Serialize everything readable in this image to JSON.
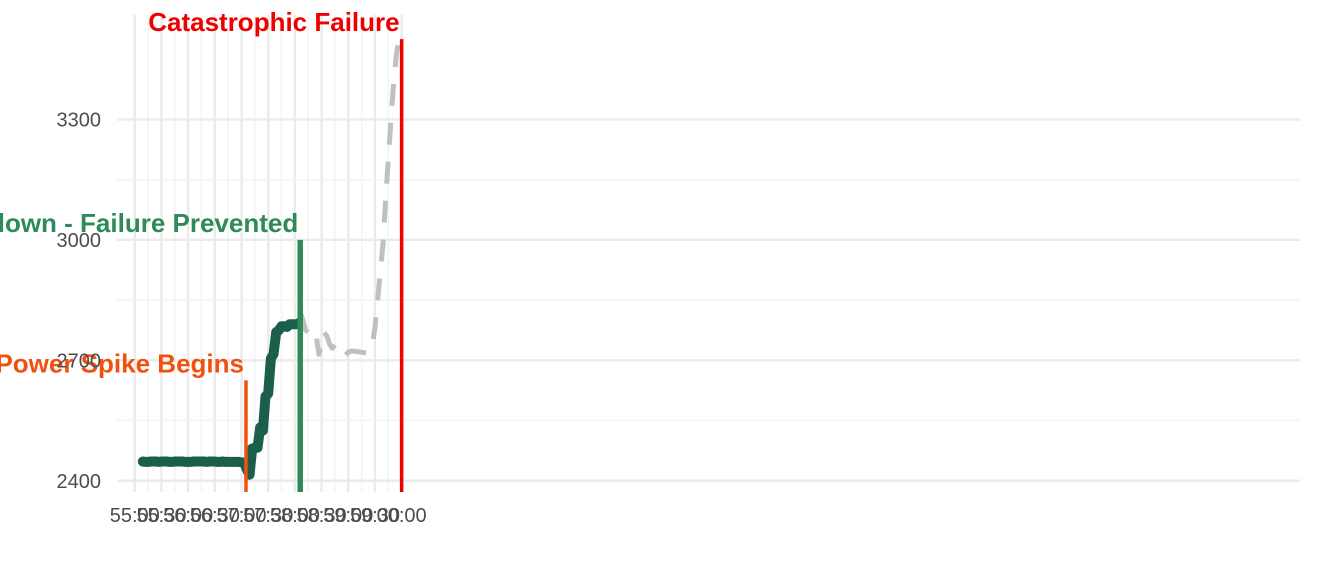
{
  "chart_data": {
    "type": "line",
    "title": "",
    "xlabel": "",
    "ylabel": "",
    "x_axis": {
      "unit": "seconds",
      "range": [
        -20,
        1310
      ],
      "ticks": [
        {
          "value": 0,
          "label": "55:00"
        },
        {
          "value": 30,
          "label": "55:30"
        },
        {
          "value": 60,
          "label": "56:00"
        },
        {
          "value": 90,
          "label": "56:30"
        },
        {
          "value": 120,
          "label": "57:00"
        },
        {
          "value": 150,
          "label": "57:30"
        },
        {
          "value": 180,
          "label": "58:00"
        },
        {
          "value": 210,
          "label": "58:30"
        },
        {
          "value": 240,
          "label": "59:00"
        },
        {
          "value": 270,
          "label": "59:30"
        },
        {
          "value": 300,
          "label": "00:00"
        }
      ]
    },
    "y_axis": {
      "range": [
        2372,
        3560
      ],
      "ticks": [
        2400,
        2700,
        3000,
        3300
      ]
    },
    "grid": true,
    "series": [
      {
        "role": "observed",
        "color": "#1b5e4b",
        "style": "solid",
        "x": [
          9,
          12,
          15,
          18,
          21,
          24,
          27,
          30,
          33,
          36,
          39,
          42,
          45,
          48,
          51,
          54,
          57,
          60,
          63,
          66,
          69,
          72,
          75,
          78,
          81,
          84,
          87,
          90,
          93,
          96,
          99,
          102,
          105,
          108,
          111,
          114,
          117,
          120,
          123,
          126,
          129,
          132,
          135,
          138,
          141,
          144,
          147,
          150,
          153,
          156,
          159,
          162,
          165,
          168,
          171,
          174,
          177,
          180,
          183,
          186
        ],
        "y": [
          2448,
          2447,
          2447,
          2448,
          2448,
          2448,
          2447,
          2448,
          2448,
          2448,
          2447,
          2447,
          2448,
          2448,
          2448,
          2448,
          2447,
          2447,
          2447,
          2448,
          2448,
          2448,
          2448,
          2448,
          2447,
          2448,
          2448,
          2448,
          2447,
          2447,
          2448,
          2447,
          2447,
          2447,
          2447,
          2447,
          2447,
          2446,
          2445,
          2428,
          2415,
          2480,
          2482,
          2482,
          2533,
          2525,
          2610,
          2617,
          2705,
          2715,
          2770,
          2775,
          2785,
          2785,
          2783,
          2790,
          2790,
          2790,
          2790,
          2795
        ]
      },
      {
        "role": "projected",
        "color": "#c0c0c0",
        "style": "dashed",
        "x": [
          186,
          189,
          192,
          195,
          198,
          201,
          204,
          207,
          210,
          213,
          216,
          219,
          222,
          225,
          228,
          231,
          234,
          237,
          240,
          243,
          246,
          249,
          252,
          255,
          258,
          261,
          264,
          267,
          270,
          273,
          276,
          279,
          282,
          285,
          288,
          291,
          294,
          297,
          300
        ],
        "y": [
          2820,
          2800,
          2775,
          2770,
          2780,
          2770,
          2760,
          2715,
          2745,
          2770,
          2760,
          2740,
          2730,
          2738,
          2741,
          2731,
          2720,
          2713,
          2720,
          2723,
          2723,
          2722,
          2721,
          2720,
          2719,
          2718,
          2722,
          2738,
          2780,
          2850,
          2920,
          2990,
          3100,
          3200,
          3300,
          3390,
          3460,
          3500,
          3505
        ]
      }
    ],
    "annotations": [
      {
        "label": "Power Spike Begins",
        "x": 125,
        "y_top": 2650,
        "color": "#f2500f"
      },
      {
        "label": "Unit Shutdown - Failure Prevented",
        "x": 186,
        "y_top": 3000,
        "color": "#2e8b57"
      },
      {
        "label": "Catastrophic Failure",
        "x": 300,
        "y_top": 3500,
        "color": "#ee0000"
      }
    ]
  }
}
